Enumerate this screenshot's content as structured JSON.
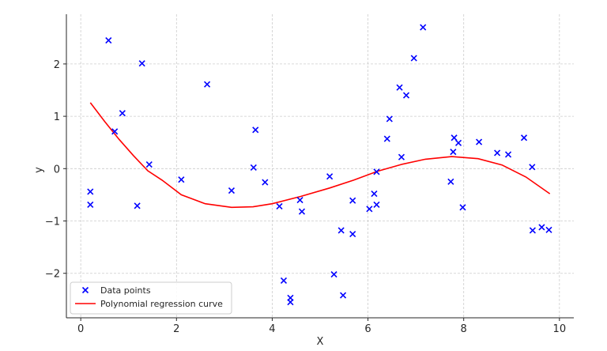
{
  "chart_data": {
    "type": "scatter",
    "title": "",
    "xlabel": "X",
    "ylabel": "y",
    "xlim": [
      -0.3,
      10.3
    ],
    "ylim": [
      -2.85,
      2.95
    ],
    "xticks": [
      0,
      2,
      4,
      6,
      8,
      10
    ],
    "yticks": [
      -2,
      -1,
      0,
      1,
      2
    ],
    "xtick_labels": [
      "0",
      "2",
      "4",
      "6",
      "8",
      "10"
    ],
    "ytick_labels": [
      "−2",
      "−1",
      "0",
      "1",
      "2"
    ],
    "grid": true,
    "legend_position": "bottom-left",
    "series": [
      {
        "name": "Data points",
        "kind": "scatter",
        "marker": "x",
        "color": "#0000ff",
        "points": [
          [
            0.2,
            -0.44
          ],
          [
            0.2,
            -0.69
          ],
          [
            0.58,
            2.45
          ],
          [
            0.71,
            0.71
          ],
          [
            0.87,
            1.06
          ],
          [
            1.18,
            -0.71
          ],
          [
            1.28,
            2.01
          ],
          [
            1.43,
            0.08
          ],
          [
            2.1,
            -0.21
          ],
          [
            2.64,
            1.61
          ],
          [
            3.15,
            -0.42
          ],
          [
            3.61,
            0.02
          ],
          [
            3.65,
            0.74
          ],
          [
            3.85,
            -0.26
          ],
          [
            4.15,
            -0.72
          ],
          [
            4.24,
            -2.14
          ],
          [
            4.38,
            -2.47
          ],
          [
            4.38,
            -2.55
          ],
          [
            4.58,
            -0.6
          ],
          [
            4.62,
            -0.82
          ],
          [
            5.2,
            -0.15
          ],
          [
            5.29,
            -2.02
          ],
          [
            5.44,
            -1.18
          ],
          [
            5.48,
            -2.42
          ],
          [
            5.68,
            -0.61
          ],
          [
            5.68,
            -1.25
          ],
          [
            6.03,
            -0.77
          ],
          [
            6.13,
            -0.48
          ],
          [
            6.18,
            -0.06
          ],
          [
            6.18,
            -0.69
          ],
          [
            6.4,
            0.57
          ],
          [
            6.45,
            0.95
          ],
          [
            6.66,
            1.55
          ],
          [
            6.7,
            0.22
          ],
          [
            6.8,
            1.4
          ],
          [
            6.96,
            2.11
          ],
          [
            7.15,
            2.7
          ],
          [
            7.73,
            -0.25
          ],
          [
            7.78,
            0.32
          ],
          [
            7.8,
            0.59
          ],
          [
            7.89,
            0.49
          ],
          [
            7.98,
            -0.74
          ],
          [
            8.32,
            0.51
          ],
          [
            8.7,
            0.3
          ],
          [
            8.93,
            0.27
          ],
          [
            9.26,
            0.59
          ],
          [
            9.43,
            0.03
          ],
          [
            9.44,
            -1.18
          ],
          [
            9.63,
            -1.12
          ],
          [
            9.78,
            -1.17
          ]
        ]
      },
      {
        "name": "Polynomial regression curve",
        "kind": "line",
        "color": "#ff0000",
        "points": [
          [
            0.2,
            1.26
          ],
          [
            0.5,
            0.9
          ],
          [
            0.8,
            0.56
          ],
          [
            1.1,
            0.25
          ],
          [
            1.4,
            -0.04
          ],
          [
            1.7,
            -0.22
          ],
          [
            2.1,
            -0.5
          ],
          [
            2.6,
            -0.67
          ],
          [
            3.15,
            -0.74
          ],
          [
            3.6,
            -0.73
          ],
          [
            4.0,
            -0.67
          ],
          [
            4.6,
            -0.53
          ],
          [
            5.2,
            -0.37
          ],
          [
            5.7,
            -0.22
          ],
          [
            6.2,
            -0.05
          ],
          [
            6.7,
            0.08
          ],
          [
            7.2,
            0.18
          ],
          [
            7.75,
            0.23
          ],
          [
            8.3,
            0.19
          ],
          [
            8.8,
            0.07
          ],
          [
            9.3,
            -0.16
          ],
          [
            9.8,
            -0.48
          ]
        ]
      }
    ]
  }
}
